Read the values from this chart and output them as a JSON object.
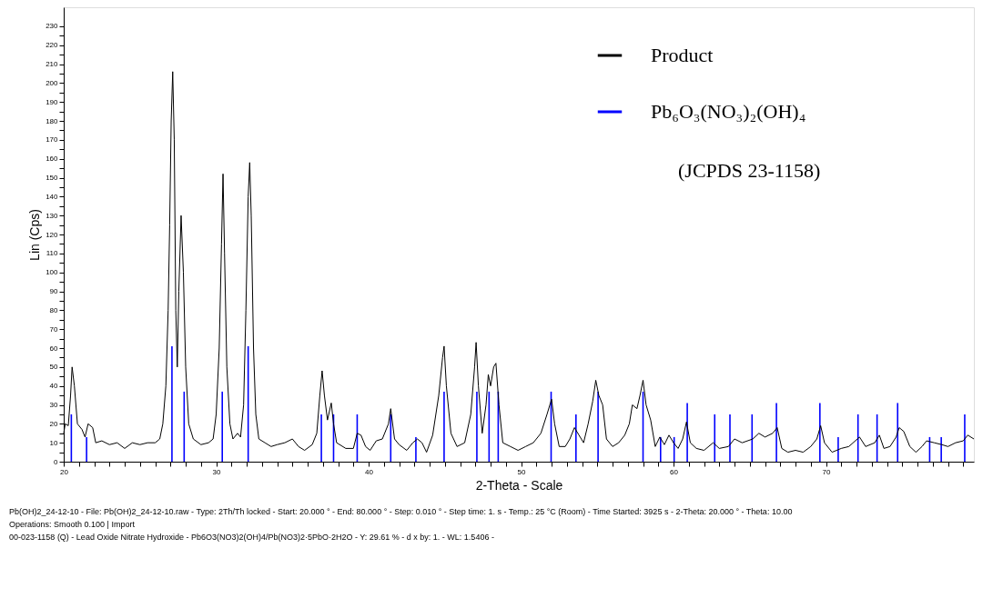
{
  "chart_data": {
    "type": "line",
    "xlabel": "2-Theta - Scale",
    "ylabel": "Lin (Cps)",
    "xlim": [
      20,
      79.7
    ],
    "ylim": [
      0,
      240
    ],
    "xticks": [
      20,
      {
        "value": 21,
        "label": null
      },
      {
        "value": 22,
        "label": null
      },
      {
        "value": 23,
        "label": null
      },
      {
        "value": 24,
        "label": null
      },
      {
        "value": 25,
        "label": null
      },
      {
        "value": 26,
        "label": null
      },
      {
        "value": 27,
        "label": null
      },
      {
        "value": 28,
        "label": null
      },
      {
        "value": 29,
        "label": null
      },
      30,
      {
        "value": 31,
        "label": null
      },
      {
        "value": 32,
        "label": null
      },
      {
        "value": 33,
        "label": null
      },
      {
        "value": 34,
        "label": null
      },
      {
        "value": 35,
        "label": null
      },
      {
        "value": 36,
        "label": null
      },
      {
        "value": 37,
        "label": null
      },
      {
        "value": 38,
        "label": null
      },
      {
        "value": 39,
        "label": null
      },
      40,
      {
        "value": 41,
        "label": null
      },
      {
        "value": 42,
        "label": null
      },
      {
        "value": 43,
        "label": null
      },
      {
        "value": 44,
        "label": null
      },
      {
        "value": 45,
        "label": null
      },
      {
        "value": 46,
        "label": null
      },
      {
        "value": 47,
        "label": null
      },
      {
        "value": 48,
        "label": null
      },
      {
        "value": 49,
        "label": null
      },
      50,
      {
        "value": 51,
        "label": null
      },
      {
        "value": 52,
        "label": null
      },
      {
        "value": 53,
        "label": null
      },
      {
        "value": 54,
        "label": null
      },
      {
        "value": 55,
        "label": null
      },
      {
        "value": 56,
        "label": null
      },
      {
        "value": 57,
        "label": null
      },
      {
        "value": 58,
        "label": null
      },
      {
        "value": 59,
        "label": null
      },
      60,
      {
        "value": 61,
        "label": null
      },
      {
        "value": 62,
        "label": null
      },
      {
        "value": 63,
        "label": null
      },
      {
        "value": 64,
        "label": null
      },
      {
        "value": 65,
        "label": null
      },
      {
        "value": 66,
        "label": null
      },
      {
        "value": 67,
        "label": null
      },
      {
        "value": 68,
        "label": null
      },
      {
        "value": 69,
        "label": null
      },
      70,
      {
        "value": 71,
        "label": null
      },
      {
        "value": 72,
        "label": null
      },
      {
        "value": 73,
        "label": null
      },
      {
        "value": 74,
        "label": null
      },
      {
        "value": 75,
        "label": null
      },
      {
        "value": 76,
        "label": null
      },
      {
        "value": 77,
        "label": null
      },
      {
        "value": 78,
        "label": null
      },
      {
        "value": 79,
        "label": null
      }
    ],
    "yticks": [
      0,
      {
        "value": 5,
        "label": null
      },
      10,
      {
        "value": 15,
        "label": null
      },
      20,
      {
        "value": 25,
        "label": null
      },
      30,
      {
        "value": 35,
        "label": null
      },
      40,
      {
        "value": 45,
        "label": null
      },
      50,
      {
        "value": 55,
        "label": null
      },
      60,
      {
        "value": 65,
        "label": null
      },
      70,
      {
        "value": 75,
        "label": null
      },
      80,
      {
        "value": 85,
        "label": null
      },
      90,
      {
        "value": 95,
        "label": null
      },
      100,
      {
        "value": 105,
        "label": null
      },
      110,
      {
        "value": 115,
        "label": null
      },
      120,
      {
        "value": 125,
        "label": null
      },
      130,
      {
        "value": 135,
        "label": null
      },
      140,
      {
        "value": 145,
        "label": null
      },
      150,
      {
        "value": 155,
        "label": null
      },
      160,
      {
        "value": 165,
        "label": null
      },
      170,
      {
        "value": 175,
        "label": null
      },
      180,
      {
        "value": 185,
        "label": null
      },
      190,
      {
        "value": 195,
        "label": null
      },
      200,
      {
        "value": 205,
        "label": null
      },
      210,
      {
        "value": 215,
        "label": null
      },
      220,
      {
        "value": 225,
        "label": null
      },
      230
    ],
    "grid": false,
    "legend": "top right",
    "marker": "none",
    "line_style": "solid",
    "series": [
      {
        "name": "Product",
        "color": "#000000",
        "x": [
          20.0,
          20.1,
          20.3,
          20.45,
          20.55,
          20.7,
          20.9,
          21.2,
          21.4,
          21.6,
          21.9,
          22.1,
          22.5,
          23,
          23.5,
          24,
          24.5,
          25,
          25.5,
          26,
          26.3,
          26.5,
          26.7,
          26.85,
          26.95,
          27.05,
          27.15,
          27.25,
          27.35,
          27.45,
          27.55,
          27.7,
          27.85,
          28.0,
          28.2,
          28.5,
          29,
          29.5,
          29.8,
          30.0,
          30.2,
          30.35,
          30.45,
          30.55,
          30.7,
          30.9,
          31.1,
          31.4,
          31.6,
          31.8,
          31.95,
          32.1,
          32.2,
          32.3,
          32.45,
          32.6,
          32.8,
          33.2,
          33.6,
          34,
          34.5,
          35,
          35.4,
          35.8,
          36.3,
          36.6,
          36.8,
          36.95,
          37.1,
          37.3,
          37.55,
          37.7,
          37.9,
          38.5,
          39,
          39.25,
          39.5,
          39.8,
          40.1,
          40.5,
          40.9,
          41.3,
          41.45,
          41.7,
          42,
          42.5,
          42.9,
          43.2,
          43.5,
          43.8,
          44.2,
          44.6,
          44.85,
          44.95,
          45.1,
          45.4,
          45.8,
          46.3,
          46.7,
          46.95,
          47.05,
          47.2,
          47.45,
          47.7,
          47.85,
          48.0,
          48.2,
          48.35,
          48.55,
          48.8,
          49.3,
          49.8,
          50.3,
          50.8,
          51.3,
          51.7,
          52.0,
          52.2,
          52.5,
          52.9,
          53.2,
          53.5,
          53.8,
          54.1,
          54.4,
          54.7,
          54.9,
          55.1,
          55.35,
          55.6,
          56,
          56.4,
          56.8,
          57.1,
          57.3,
          57.6,
          57.8,
          58.0,
          58.2,
          58.5,
          58.8,
          59.1,
          59.4,
          59.7,
          60.0,
          60.3,
          60.6,
          60.85,
          61.1,
          61.5,
          62,
          62.6,
          63,
          63.6,
          64,
          64.5,
          65.2,
          65.6,
          66,
          66.5,
          66.8,
          67.1,
          67.5,
          68,
          68.5,
          69,
          69.4,
          69.65,
          69.9,
          70.4,
          71,
          71.5,
          72.2,
          72.6,
          73.2,
          73.5,
          73.8,
          74.2,
          74.6,
          74.8,
          75.1,
          75.5,
          75.9,
          76.3,
          76.6,
          77.1,
          77.6,
          78,
          78.5,
          79.0,
          79.3,
          79.7
        ],
        "values": [
          15,
          20,
          19,
          35,
          50,
          40,
          20,
          17,
          13,
          20,
          18,
          10,
          11,
          9,
          10,
          7,
          10,
          9,
          10,
          10,
          12,
          20,
          40,
          80,
          125,
          180,
          206,
          170,
          80,
          50,
          90,
          130,
          100,
          50,
          20,
          12,
          9,
          10,
          12,
          25,
          60,
          115,
          152,
          110,
          50,
          20,
          12,
          15,
          13,
          30,
          80,
          140,
          158,
          130,
          60,
          25,
          12,
          10,
          8,
          9,
          10,
          12,
          8,
          6,
          9,
          15,
          35,
          48,
          35,
          22,
          31,
          20,
          10,
          7,
          7,
          15,
          14,
          8,
          6,
          11,
          12,
          20,
          28,
          12,
          9,
          6,
          10,
          12,
          10,
          5,
          14,
          35,
          55,
          61,
          40,
          15,
          8,
          10,
          25,
          50,
          63,
          40,
          15,
          30,
          46,
          40,
          50,
          52,
          30,
          10,
          8,
          6,
          8,
          10,
          15,
          25,
          33,
          20,
          8,
          8,
          12,
          18,
          14,
          10,
          20,
          32,
          43,
          35,
          30,
          12,
          8,
          10,
          14,
          20,
          30,
          28,
          35,
          43,
          30,
          22,
          8,
          13,
          9,
          14,
          10,
          7,
          12,
          21,
          10,
          7,
          6,
          10,
          7,
          8,
          12,
          10,
          12,
          15,
          13,
          15,
          18,
          7,
          5,
          6,
          5,
          8,
          12,
          19,
          10,
          5,
          7,
          8,
          13,
          8,
          10,
          14,
          7,
          8,
          13,
          18,
          16,
          8,
          5,
          8,
          11,
          10,
          9,
          8,
          10,
          11,
          14,
          12
        ]
      },
      {
        "name": "Pb₆O₃(NO₃)₂(OH)₄",
        "type": "bar",
        "color": "#0000ff",
        "x": [
          20.5,
          21.5,
          27.1,
          27.9,
          30.4,
          32.1,
          36.9,
          37.7,
          39.25,
          41.45,
          43.1,
          44.95,
          47.1,
          47.9,
          48.5,
          51.97,
          53.6,
          55.05,
          58.0,
          59.15,
          60.04,
          60.9,
          62.7,
          63.7,
          65.15,
          66.75,
          69.6,
          70.8,
          72.1,
          73.35,
          74.7,
          76.8,
          77.56,
          79.1
        ],
        "values": [
          25,
          13,
          61,
          37,
          37,
          61,
          25,
          25,
          25,
          25,
          13,
          37,
          37,
          37,
          37,
          37,
          25,
          37,
          37,
          13,
          13,
          31,
          25,
          25,
          25,
          31,
          31,
          13,
          25,
          25,
          31,
          13,
          13,
          25
        ]
      }
    ],
    "annotations": [
      "(JCPDS 23-1158)",
      "Pb(OH)2_24-12-10 - File: Pb(OH)2_24-12-10.raw - Type: 2Th/Th locked - Start: 20.000 ° - End: 80.000 ° - Step: 0.010 ° - Step time: 1. s - Temp.: 25 °C (Room) - Time Started: 3925 s - 2-Theta: 20.000 ° - Theta: 10.00",
      "Operations: Smooth 0.100 | Import",
      "00-023-1158 (Q) - Lead Oxide Nitrate Hydroxide - Pb6O3(NO3)2(OH)4/Pb(NO3)2·5PbO·2H2O - Y: 29.61 % - d x by: 1. - WL: 1.5406 -"
    ]
  }
}
